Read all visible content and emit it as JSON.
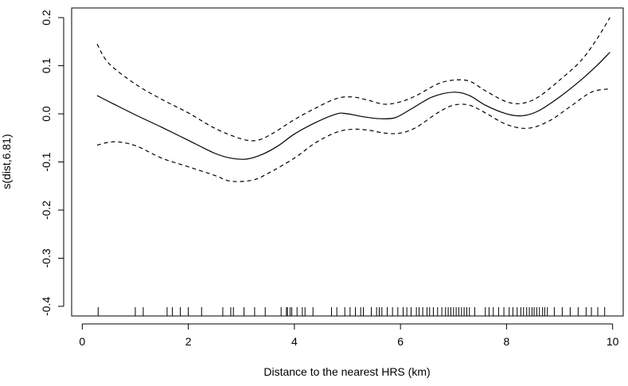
{
  "chart_data": {
    "type": "line",
    "title": "",
    "xlabel": "Distance to the nearest HRS (km)",
    "ylabel": "s(dist,6.81)",
    "xlim": [
      -0.2,
      10.2
    ],
    "ylim": [
      -0.42,
      0.22
    ],
    "xticks": [
      0,
      2,
      4,
      6,
      8,
      10
    ],
    "xtick_labels": [
      "0",
      "2",
      "4",
      "6",
      "8",
      "10"
    ],
    "yticks": [
      -0.4,
      -0.3,
      -0.2,
      -0.1,
      0.0,
      0.1,
      0.2
    ],
    "ytick_labels": [
      "-0.4",
      "-0.3",
      "-0.2",
      "-0.1",
      "0.0",
      "0.1",
      "0.2"
    ],
    "grid": false,
    "legend": "none",
    "series": [
      {
        "role": "fit",
        "style": "solid",
        "x": [
          0.28,
          0.6,
          1.0,
          1.5,
          2.0,
          2.5,
          2.8,
          3.1,
          3.4,
          3.7,
          4.0,
          4.4,
          4.8,
          5.0,
          5.3,
          5.6,
          5.9,
          6.2,
          6.6,
          7.0,
          7.3,
          7.6,
          8.0,
          8.3,
          8.6,
          9.0,
          9.4,
          9.7,
          9.95
        ],
        "y": [
          0.038,
          0.02,
          -0.002,
          -0.028,
          -0.055,
          -0.082,
          -0.092,
          -0.094,
          -0.084,
          -0.066,
          -0.042,
          -0.018,
          0.0,
          0.0,
          -0.006,
          -0.01,
          -0.008,
          0.01,
          0.035,
          0.045,
          0.038,
          0.018,
          0.0,
          -0.004,
          0.006,
          0.035,
          0.07,
          0.1,
          0.128
        ]
      },
      {
        "role": "upper",
        "style": "dashed",
        "x": [
          0.28,
          0.5,
          1.0,
          1.5,
          2.0,
          2.5,
          3.0,
          3.3,
          3.6,
          4.0,
          4.4,
          4.8,
          5.1,
          5.4,
          5.7,
          6.0,
          6.3,
          6.7,
          7.0,
          7.3,
          7.6,
          8.0,
          8.3,
          8.6,
          9.0,
          9.4,
          9.7,
          9.95
        ],
        "y": [
          0.145,
          0.105,
          0.062,
          0.03,
          0.002,
          -0.03,
          -0.052,
          -0.055,
          -0.04,
          -0.012,
          0.012,
          0.032,
          0.035,
          0.028,
          0.02,
          0.025,
          0.038,
          0.062,
          0.07,
          0.068,
          0.048,
          0.025,
          0.022,
          0.035,
          0.07,
          0.11,
          0.155,
          0.2
        ]
      },
      {
        "role": "lower",
        "style": "dashed",
        "x": [
          0.28,
          0.6,
          1.0,
          1.5,
          2.0,
          2.5,
          2.8,
          3.2,
          3.5,
          4.0,
          4.4,
          4.8,
          5.1,
          5.4,
          5.7,
          6.0,
          6.3,
          6.7,
          7.0,
          7.3,
          7.6,
          8.0,
          8.4,
          8.8,
          9.2,
          9.6,
          9.95
        ],
        "y": [
          -0.065,
          -0.058,
          -0.066,
          -0.092,
          -0.11,
          -0.128,
          -0.14,
          -0.138,
          -0.124,
          -0.092,
          -0.06,
          -0.038,
          -0.032,
          -0.034,
          -0.04,
          -0.04,
          -0.028,
          0.002,
          0.018,
          0.018,
          0.002,
          -0.022,
          -0.03,
          -0.015,
          0.015,
          0.045,
          0.052
        ]
      }
    ],
    "rug": [
      0.3,
      1.0,
      1.15,
      1.6,
      1.7,
      1.85,
      2.0,
      2.25,
      2.65,
      2.8,
      2.85,
      3.05,
      3.25,
      3.45,
      3.75,
      3.85,
      3.87,
      3.92,
      3.95,
      4.05,
      4.15,
      4.2,
      4.35,
      4.7,
      4.8,
      4.95,
      5.05,
      5.15,
      5.25,
      5.3,
      5.45,
      5.55,
      5.6,
      5.65,
      5.75,
      5.85,
      5.95,
      6.05,
      6.12,
      6.2,
      6.3,
      6.35,
      6.42,
      6.5,
      6.55,
      6.62,
      6.7,
      6.78,
      6.85,
      6.9,
      6.95,
      7.0,
      7.05,
      7.1,
      7.15,
      7.2,
      7.25,
      7.3,
      7.4,
      7.6,
      7.67,
      7.75,
      7.85,
      7.95,
      8.05,
      8.12,
      8.2,
      8.27,
      8.32,
      8.38,
      8.43,
      8.48,
      8.52,
      8.57,
      8.62,
      8.68,
      8.72,
      8.77,
      8.9,
      9.05,
      9.2,
      9.35,
      9.5,
      9.6,
      9.72,
      9.85
    ]
  }
}
